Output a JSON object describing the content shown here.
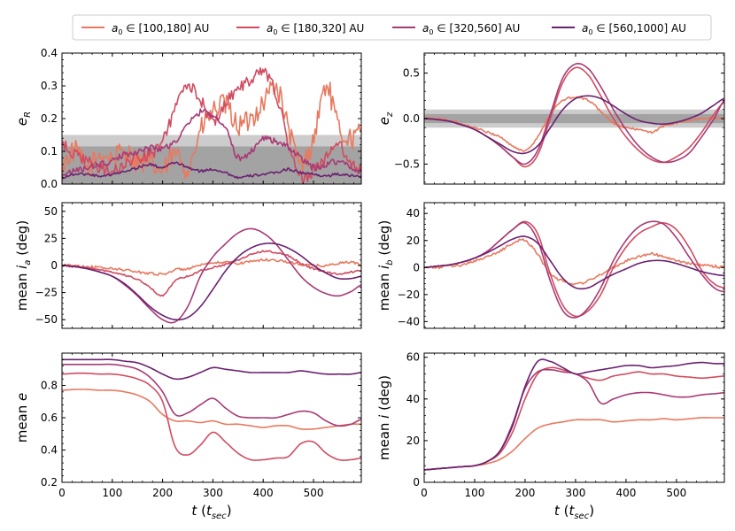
{
  "legend": {
    "entries": [
      {
        "label": "[100,180] AU",
        "color": "#e8795f"
      },
      {
        "label": "[180,320] AU",
        "color": "#d14b60"
      },
      {
        "label": "[320,560] AU",
        "color": "#a73a75"
      },
      {
        "label": "[560,1000] AU",
        "color": "#6a2170"
      }
    ],
    "prefix_symbol": "a",
    "prefix_sub": "0",
    "prefix_in": "∈"
  },
  "shared_xlabel": {
    "symbol": "t",
    "open": "(",
    "unit_symbol": "t",
    "unit_sub": "sec",
    "close": ")"
  },
  "chart_data": [
    {
      "id": "eR",
      "type": "line",
      "ylabel": {
        "pre": "",
        "sym": "e",
        "sub": "R"
      },
      "xlim": [
        0,
        595
      ],
      "ylim": [
        0,
        0.4
      ],
      "xticks": [
        0,
        100,
        200,
        300,
        400,
        500
      ],
      "yticks": [
        0.0,
        0.1,
        0.2,
        0.3,
        0.4
      ],
      "ytick_labels": [
        "0.0",
        "0.1",
        "0.2",
        "0.3",
        "0.4"
      ],
      "bands": [
        [
          0,
          0.15
        ],
        [
          0,
          0.115
        ]
      ],
      "x": [
        0,
        25,
        50,
        75,
        100,
        125,
        150,
        175,
        200,
        225,
        250,
        275,
        300,
        325,
        350,
        375,
        400,
        425,
        450,
        475,
        500,
        525,
        550,
        575,
        595
      ],
      "series": [
        {
          "values": [
            0.06,
            0.1,
            0.05,
            0.09,
            0.08,
            0.1,
            0.07,
            0.06,
            0.04,
            0.09,
            0.05,
            0.16,
            0.22,
            0.24,
            0.18,
            0.2,
            0.25,
            0.3,
            0.17,
            0.06,
            0.14,
            0.3,
            0.17,
            0.14,
            0.16
          ],
          "noise": 0.035
        },
        {
          "values": [
            0.12,
            0.09,
            0.07,
            0.05,
            0.04,
            0.06,
            0.08,
            0.09,
            0.13,
            0.23,
            0.3,
            0.26,
            0.19,
            0.25,
            0.29,
            0.32,
            0.34,
            0.28,
            0.12,
            0.02,
            0.04,
            0.08,
            0.12,
            0.06,
            0.05
          ],
          "noise": 0.018
        },
        {
          "values": [
            0.03,
            0.04,
            0.05,
            0.06,
            0.07,
            0.09,
            0.1,
            0.11,
            0.11,
            0.13,
            0.18,
            0.22,
            0.21,
            0.17,
            0.08,
            0.1,
            0.14,
            0.13,
            0.11,
            0.08,
            0.05,
            0.06,
            0.07,
            0.05,
            0.04
          ],
          "noise": 0.01
        },
        {
          "values": [
            0.02,
            0.03,
            0.03,
            0.025,
            0.03,
            0.04,
            0.05,
            0.06,
            0.05,
            0.065,
            0.05,
            0.04,
            0.045,
            0.035,
            0.02,
            0.025,
            0.03,
            0.035,
            0.045,
            0.035,
            0.03,
            0.025,
            0.03,
            0.025,
            0.025
          ],
          "noise": 0.004
        }
      ]
    },
    {
      "id": "ez",
      "type": "line",
      "ylabel": {
        "pre": "",
        "sym": "e",
        "sub": "z"
      },
      "xlim": [
        0,
        595
      ],
      "ylim": [
        -0.72,
        0.72
      ],
      "xticks": [
        0,
        100,
        200,
        300,
        400,
        500
      ],
      "yticks": [
        -0.5,
        0.0,
        0.5
      ],
      "ytick_labels": [
        "−0.5",
        "0.0",
        "0.5"
      ],
      "bands": [
        [
          -0.1,
          0.1
        ],
        [
          -0.05,
          0.05
        ]
      ],
      "x": [
        0,
        25,
        50,
        75,
        100,
        125,
        150,
        175,
        200,
        225,
        250,
        275,
        300,
        325,
        350,
        375,
        400,
        425,
        450,
        475,
        500,
        525,
        550,
        575,
        595
      ],
      "series": [
        {
          "values": [
            0.0,
            0.0,
            -0.02,
            -0.06,
            -0.1,
            -0.15,
            -0.2,
            -0.3,
            -0.35,
            -0.2,
            0.05,
            0.2,
            0.23,
            0.2,
            0.08,
            -0.05,
            -0.1,
            -0.12,
            -0.15,
            -0.08,
            -0.05,
            -0.02,
            0.0,
            0.01,
            0.0
          ],
          "noise": 0.012
        },
        {
          "values": [
            0.0,
            -0.01,
            -0.03,
            -0.07,
            -0.12,
            -0.2,
            -0.3,
            -0.42,
            -0.53,
            -0.4,
            0.0,
            0.4,
            0.56,
            0.48,
            0.25,
            0.0,
            -0.2,
            -0.35,
            -0.45,
            -0.48,
            -0.42,
            -0.32,
            -0.15,
            0.05,
            0.18
          ],
          "noise": 0.0
        },
        {
          "values": [
            0.0,
            -0.01,
            -0.03,
            -0.07,
            -0.12,
            -0.2,
            -0.3,
            -0.42,
            -0.5,
            -0.35,
            0.05,
            0.45,
            0.6,
            0.55,
            0.35,
            0.1,
            -0.12,
            -0.3,
            -0.42,
            -0.48,
            -0.46,
            -0.38,
            -0.2,
            0.0,
            0.2
          ],
          "noise": 0.0
        },
        {
          "values": [
            0.0,
            -0.01,
            -0.03,
            -0.07,
            -0.12,
            -0.2,
            -0.28,
            -0.36,
            -0.38,
            -0.3,
            -0.1,
            0.1,
            0.22,
            0.25,
            0.22,
            0.14,
            0.05,
            -0.02,
            -0.05,
            -0.06,
            -0.04,
            0.0,
            0.06,
            0.15,
            0.22
          ],
          "noise": 0.0
        }
      ]
    },
    {
      "id": "ia",
      "type": "line",
      "ylabel": {
        "pre": "mean ",
        "sym": "i",
        "sub": "a",
        "post": " (deg)"
      },
      "xlim": [
        0,
        595
      ],
      "ylim": [
        -58,
        58
      ],
      "xticks": [
        0,
        100,
        200,
        300,
        400,
        500
      ],
      "yticks": [
        -50,
        -25,
        0,
        25,
        50
      ],
      "ytick_labels": [
        "−50",
        "−25",
        "0",
        "25",
        "50"
      ],
      "bands": [],
      "x": [
        0,
        25,
        50,
        75,
        100,
        125,
        150,
        175,
        200,
        225,
        250,
        275,
        300,
        325,
        350,
        375,
        400,
        425,
        450,
        475,
        500,
        525,
        550,
        575,
        595
      ],
      "series": [
        {
          "values": [
            0,
            0,
            -1,
            -2,
            -3,
            -4,
            -6,
            -7,
            -8,
            -4,
            -3,
            0,
            2,
            3,
            2,
            4,
            5,
            5,
            3,
            1,
            0,
            0,
            2,
            3,
            0
          ],
          "noise": 1.2
        },
        {
          "values": [
            0,
            -1,
            -2,
            -4,
            -6,
            -9,
            -13,
            -20,
            -28,
            -14,
            -10,
            -5,
            -2,
            1,
            5,
            10,
            13,
            12,
            9,
            2,
            -3,
            -6,
            -8,
            -6,
            -5
          ],
          "noise": 0.8
        },
        {
          "values": [
            0,
            -1,
            -3,
            -6,
            -10,
            -18,
            -28,
            -40,
            -50,
            -52,
            -38,
            -10,
            8,
            20,
            30,
            34,
            30,
            20,
            5,
            -10,
            -20,
            -26,
            -28,
            -24,
            -18
          ],
          "noise": 0.0
        },
        {
          "values": [
            0,
            -1,
            -3,
            -6,
            -10,
            -17,
            -27,
            -38,
            -46,
            -50,
            -48,
            -38,
            -22,
            -5,
            8,
            16,
            20,
            20,
            16,
            9,
            0,
            -7,
            -12,
            -12,
            -10
          ],
          "noise": 0.0
        }
      ]
    },
    {
      "id": "ib",
      "type": "line",
      "ylabel": {
        "pre": "mean ",
        "sym": "i",
        "sub": "b",
        "post": " (deg)"
      },
      "xlim": [
        0,
        595
      ],
      "ylim": [
        -45,
        48
      ],
      "xticks": [
        0,
        100,
        200,
        300,
        400,
        500
      ],
      "yticks": [
        -40,
        -20,
        0,
        20,
        40
      ],
      "ytick_labels": [
        "−40",
        "−20",
        "0",
        "20",
        "40"
      ],
      "bands": [],
      "x": [
        0,
        25,
        50,
        75,
        100,
        125,
        150,
        175,
        200,
        225,
        250,
        275,
        300,
        325,
        350,
        375,
        400,
        425,
        450,
        475,
        500,
        525,
        550,
        575,
        595
      ],
      "series": [
        {
          "values": [
            0,
            0,
            1,
            2,
            5,
            8,
            12,
            18,
            20,
            10,
            -5,
            -10,
            -12,
            -10,
            -5,
            0,
            5,
            8,
            10,
            8,
            5,
            3,
            2,
            1,
            0
          ],
          "noise": 1.0
        },
        {
          "values": [
            0,
            1,
            2,
            4,
            7,
            12,
            20,
            28,
            34,
            25,
            -5,
            -28,
            -36,
            -32,
            -20,
            0,
            15,
            25,
            30,
            33,
            28,
            15,
            -2,
            -12,
            -15
          ],
          "noise": 0.0
        },
        {
          "values": [
            0,
            1,
            2,
            4,
            7,
            12,
            20,
            28,
            33,
            20,
            -10,
            -32,
            -37,
            -30,
            -15,
            5,
            20,
            30,
            34,
            32,
            22,
            8,
            -5,
            -15,
            -18
          ],
          "noise": 0.0
        },
        {
          "values": [
            0,
            1,
            2,
            4,
            7,
            11,
            16,
            21,
            23,
            18,
            5,
            -8,
            -15,
            -15,
            -10,
            -5,
            -1,
            3,
            5,
            5,
            3,
            0,
            -3,
            -5,
            -6
          ],
          "noise": 0.0
        }
      ]
    },
    {
      "id": "e",
      "type": "line",
      "ylabel": {
        "pre": "mean ",
        "sym": "e",
        "sub": ""
      },
      "xlim": [
        0,
        595
      ],
      "ylim": [
        0.2,
        1.0
      ],
      "xticks": [
        0,
        100,
        200,
        300,
        400,
        500
      ],
      "yticks": [
        0.2,
        0.4,
        0.6,
        0.8
      ],
      "ytick_labels": [
        "0.2",
        "0.4",
        "0.6",
        "0.8"
      ],
      "xtick_labels": [
        "0",
        "100",
        "200",
        "300",
        "400",
        "500"
      ],
      "xlabel": true,
      "bands": [],
      "x": [
        0,
        25,
        50,
        75,
        100,
        125,
        150,
        175,
        200,
        225,
        250,
        275,
        300,
        325,
        350,
        375,
        400,
        425,
        450,
        475,
        500,
        525,
        550,
        575,
        595
      ],
      "series": [
        {
          "values": [
            0.77,
            0.775,
            0.775,
            0.77,
            0.77,
            0.76,
            0.74,
            0.7,
            0.62,
            0.58,
            0.58,
            0.57,
            0.58,
            0.56,
            0.56,
            0.55,
            0.54,
            0.55,
            0.55,
            0.53,
            0.53,
            0.54,
            0.55,
            0.56,
            0.56
          ],
          "noise": 0.0
        },
        {
          "values": [
            0.87,
            0.875,
            0.875,
            0.87,
            0.87,
            0.86,
            0.84,
            0.8,
            0.7,
            0.42,
            0.37,
            0.43,
            0.51,
            0.45,
            0.38,
            0.34,
            0.34,
            0.35,
            0.36,
            0.44,
            0.45,
            0.38,
            0.34,
            0.34,
            0.35
          ],
          "noise": 0.0
        },
        {
          "values": [
            0.93,
            0.93,
            0.93,
            0.93,
            0.93,
            0.92,
            0.9,
            0.85,
            0.76,
            0.62,
            0.63,
            0.68,
            0.72,
            0.66,
            0.61,
            0.6,
            0.6,
            0.6,
            0.62,
            0.64,
            0.63,
            0.58,
            0.55,
            0.56,
            0.59
          ],
          "noise": 0.0
        },
        {
          "values": [
            0.96,
            0.96,
            0.96,
            0.96,
            0.96,
            0.95,
            0.94,
            0.91,
            0.87,
            0.84,
            0.85,
            0.88,
            0.91,
            0.9,
            0.89,
            0.88,
            0.88,
            0.88,
            0.88,
            0.89,
            0.88,
            0.87,
            0.87,
            0.87,
            0.88
          ],
          "noise": 0.0
        }
      ]
    },
    {
      "id": "i",
      "type": "line",
      "ylabel": {
        "pre": "mean ",
        "sym": "i",
        "sub": "",
        "post": " (deg)"
      },
      "xlim": [
        0,
        595
      ],
      "ylim": [
        0,
        62
      ],
      "xticks": [
        0,
        100,
        200,
        300,
        400,
        500
      ],
      "yticks": [
        0,
        20,
        40,
        60
      ],
      "ytick_labels": [
        "0",
        "20",
        "40",
        "60"
      ],
      "xtick_labels": [
        "0",
        "100",
        "200",
        "300",
        "400",
        "500"
      ],
      "xlabel": true,
      "bands": [],
      "x": [
        0,
        25,
        50,
        75,
        100,
        125,
        150,
        175,
        200,
        225,
        250,
        275,
        300,
        325,
        350,
        375,
        400,
        425,
        450,
        475,
        500,
        525,
        550,
        575,
        595
      ],
      "series": [
        {
          "values": [
            6,
            6.5,
            7,
            7.5,
            8,
            9,
            11,
            15,
            21,
            26,
            28,
            29,
            30,
            30,
            30,
            29,
            29.5,
            30,
            30,
            30.5,
            30,
            30.5,
            31,
            31,
            31
          ],
          "noise": 0.0
        },
        {
          "values": [
            6,
            6.5,
            7,
            7.5,
            8,
            10,
            14,
            24,
            40,
            52,
            55,
            54,
            52,
            50,
            49,
            51,
            52,
            53,
            52,
            52,
            51,
            50.5,
            50,
            50.5,
            51
          ],
          "noise": 0.0
        },
        {
          "values": [
            6,
            6.5,
            7,
            7.5,
            8,
            10,
            15,
            28,
            45,
            53,
            54,
            53,
            52,
            48,
            38,
            40,
            42,
            43,
            43,
            42,
            41,
            41,
            42,
            42.5,
            43
          ],
          "noise": 0.0
        },
        {
          "values": [
            6,
            6.5,
            7,
            7.5,
            8,
            10,
            15,
            27,
            46,
            58,
            58,
            55,
            52,
            53,
            54,
            55,
            56,
            56,
            55,
            55.5,
            56,
            57,
            57.5,
            57,
            57
          ],
          "noise": 0.0
        }
      ]
    }
  ]
}
